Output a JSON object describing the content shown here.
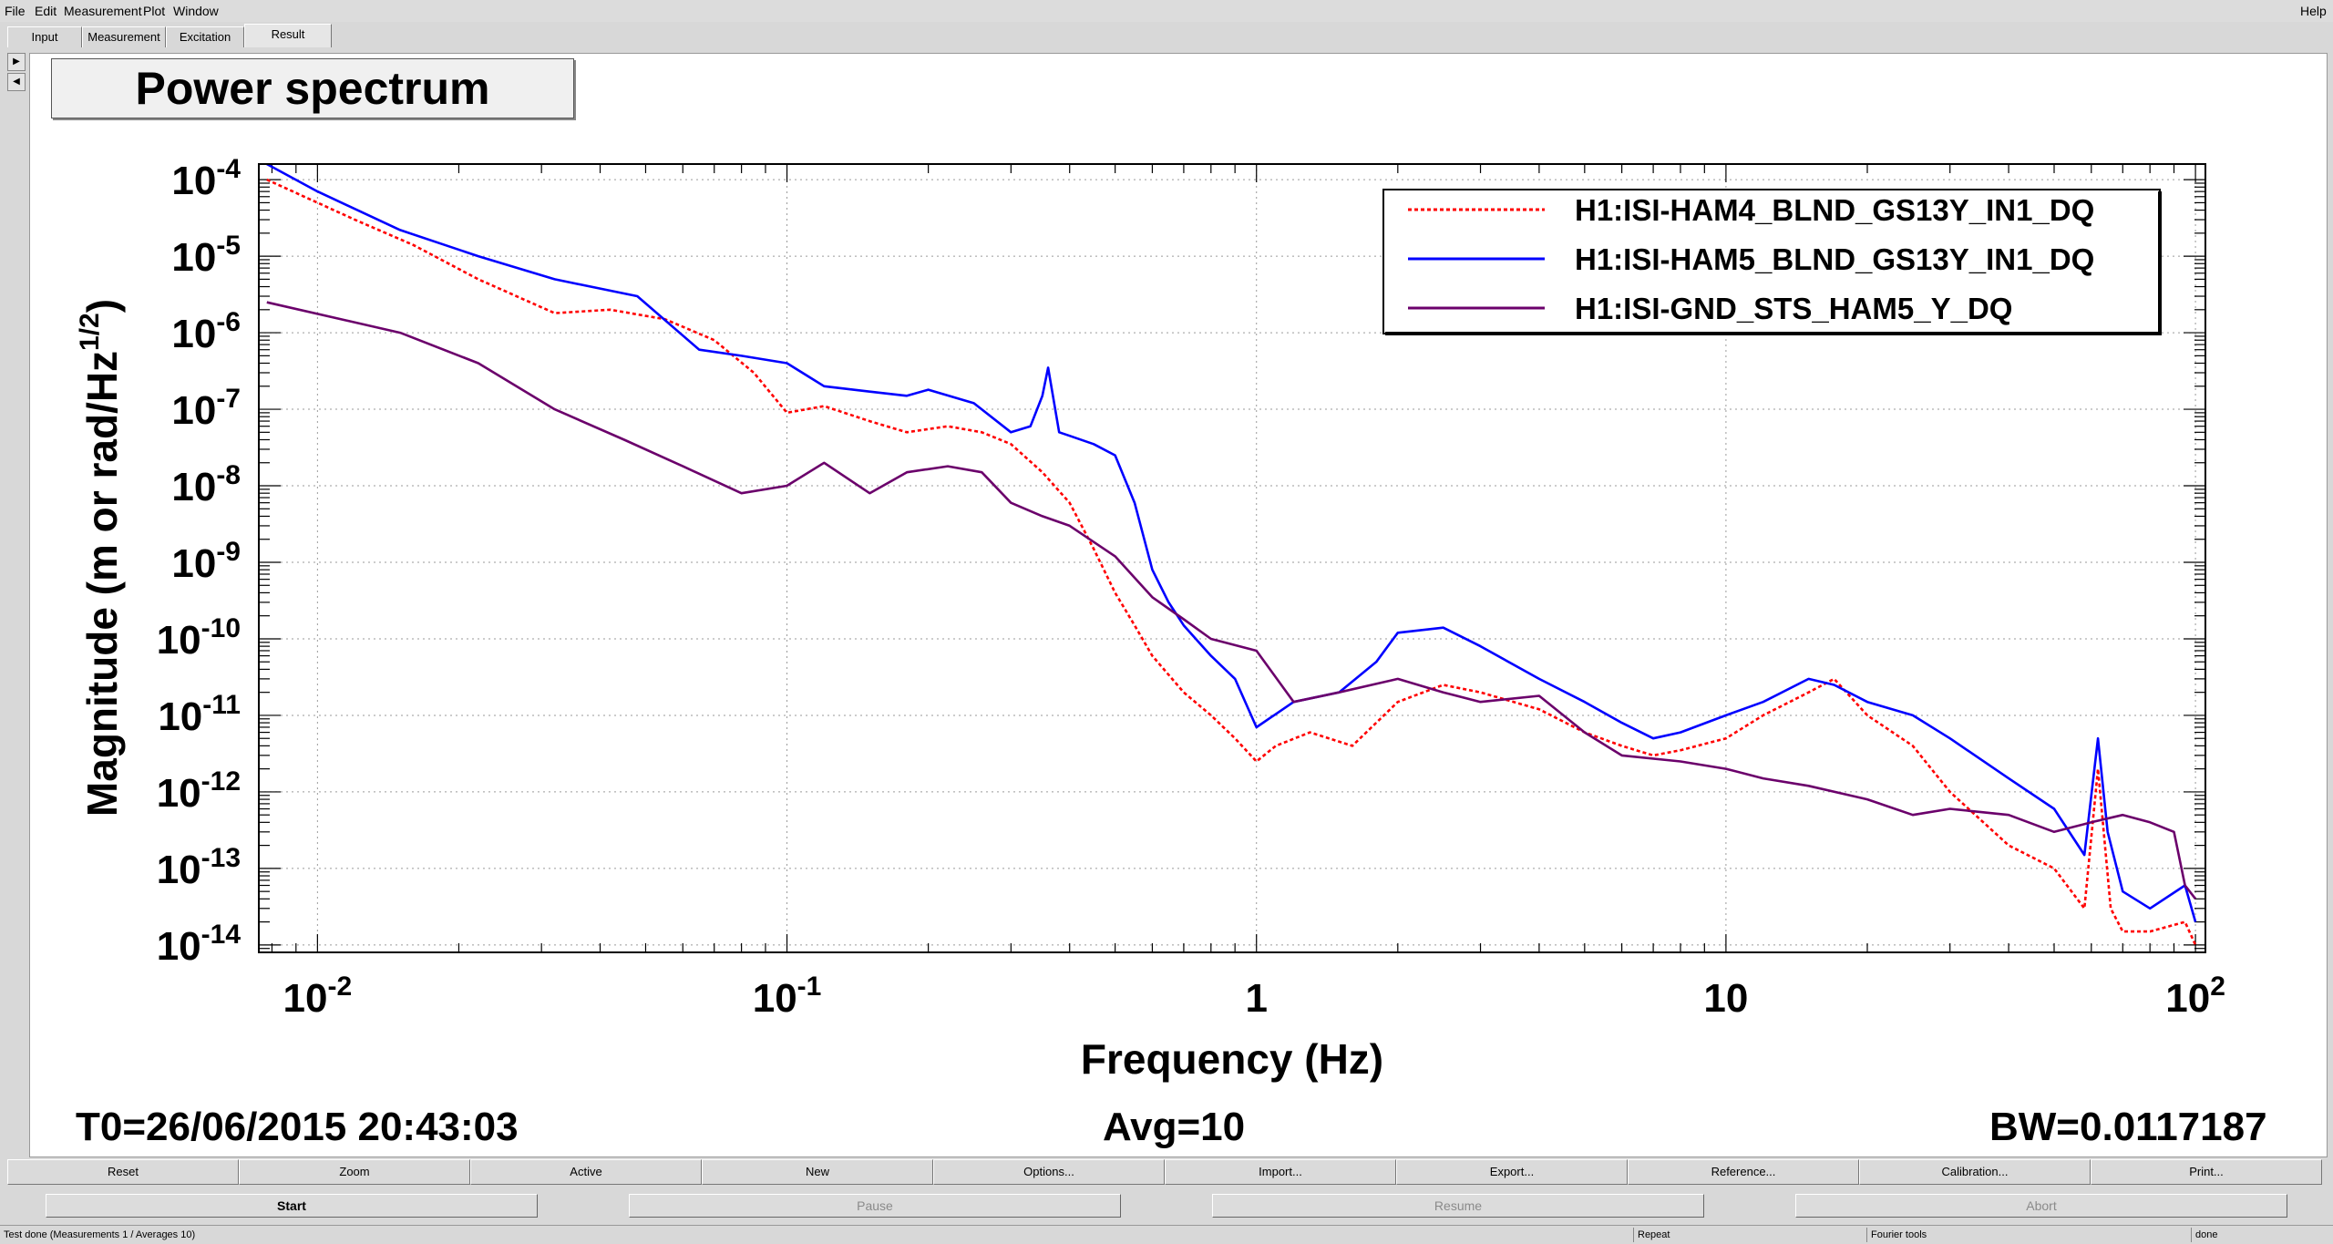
{
  "menu": {
    "items": [
      {
        "label": "File"
      },
      {
        "label": "Edit"
      },
      {
        "label": "Measurement"
      },
      {
        "label": "Plot"
      },
      {
        "label": "Window"
      }
    ],
    "help_label": "Help"
  },
  "tabs": [
    {
      "label": "Input"
    },
    {
      "label": "Measurement"
    },
    {
      "label": "Excitation"
    },
    {
      "label": "Result"
    }
  ],
  "plot": {
    "title": "Power spectrum",
    "t0": "T0=26/06/2015 20:43:03",
    "avg": "Avg=10",
    "bw": "BW=0.0117187"
  },
  "chart_data": {
    "type": "line",
    "xlabel": "Frequency (Hz)",
    "ylabel": "Magnitude (m or rad/Hz",
    "ylabel_exp": "1/2",
    "x_scale": "log",
    "y_scale": "log",
    "xlim": [
      0.0075,
      105
    ],
    "ylim": [
      8e-15,
      0.00016
    ],
    "grid": true,
    "legend_position": "top-right",
    "x_ticks": [
      {
        "value": 0.01,
        "base": "10",
        "exp": "-2"
      },
      {
        "value": 0.1,
        "base": "10",
        "exp": "-1"
      },
      {
        "value": 1,
        "base": "1",
        "exp": ""
      },
      {
        "value": 10,
        "base": "10",
        "exp": ""
      },
      {
        "value": 100,
        "base": "10",
        "exp": "2"
      }
    ],
    "y_ticks": [
      {
        "value": 0.0001,
        "base": "10",
        "exp": "-4"
      },
      {
        "value": 1e-05,
        "base": "10",
        "exp": "-5"
      },
      {
        "value": 1e-06,
        "base": "10",
        "exp": "-6"
      },
      {
        "value": 1e-07,
        "base": "10",
        "exp": "-7"
      },
      {
        "value": 1e-08,
        "base": "10",
        "exp": "-8"
      },
      {
        "value": 1e-09,
        "base": "10",
        "exp": "-9"
      },
      {
        "value": 1e-10,
        "base": "10",
        "exp": "-10"
      },
      {
        "value": 1e-11,
        "base": "10",
        "exp": "-11"
      },
      {
        "value": 1e-12,
        "base": "10",
        "exp": "-12"
      },
      {
        "value": 1e-13,
        "base": "10",
        "exp": "-13"
      },
      {
        "value": 1e-14,
        "base": "10",
        "exp": "-14"
      }
    ],
    "series": [
      {
        "name": "H1:ISI-HAM4_BLND_GS13Y_IN1_DQ",
        "color": "#ff0000",
        "dashed": true,
        "x": [
          0.0078,
          0.012,
          0.016,
          0.022,
          0.032,
          0.042,
          0.055,
          0.07,
          0.085,
          0.1,
          0.12,
          0.15,
          0.18,
          0.22,
          0.26,
          0.3,
          0.35,
          0.4,
          0.45,
          0.5,
          0.55,
          0.6,
          0.7,
          0.8,
          0.9,
          1.0,
          1.1,
          1.3,
          1.6,
          2.0,
          2.5,
          3.0,
          4.0,
          5.0,
          6.0,
          7.0,
          8.0,
          10.0,
          12.0,
          15.0,
          17.0,
          20.0,
          25.0,
          30.0,
          40.0,
          50.0,
          58.0,
          62.0,
          66.0,
          70.0,
          80.0,
          95.0,
          100.0
        ],
        "y": [
          0.0001,
          3e-05,
          1.4e-05,
          5e-06,
          1.8e-06,
          2e-06,
          1.5e-06,
          8e-07,
          3e-07,
          9e-08,
          1.1e-07,
          7e-08,
          5e-08,
          6e-08,
          5e-08,
          3.5e-08,
          1.5e-08,
          6e-09,
          1.5e-09,
          4e-10,
          1.5e-10,
          6e-11,
          2e-11,
          1e-11,
          5e-12,
          2.5e-12,
          4e-12,
          6e-12,
          4e-12,
          1.5e-11,
          2.5e-11,
          2e-11,
          1.2e-11,
          6e-12,
          4e-12,
          3e-12,
          3.5e-12,
          5e-12,
          1e-11,
          2e-11,
          3e-11,
          1e-11,
          4e-12,
          1e-12,
          2e-13,
          1e-13,
          3e-14,
          2e-12,
          3e-14,
          1.5e-14,
          1.5e-14,
          2e-14,
          1e-14
        ]
      },
      {
        "name": "H1:ISI-HAM5_BLND_GS13Y_IN1_DQ",
        "color": "#0000ff",
        "dashed": false,
        "x": [
          0.0078,
          0.01,
          0.015,
          0.022,
          0.032,
          0.048,
          0.065,
          0.08,
          0.1,
          0.12,
          0.15,
          0.18,
          0.2,
          0.25,
          0.3,
          0.33,
          0.35,
          0.36,
          0.38,
          0.4,
          0.45,
          0.5,
          0.55,
          0.6,
          0.65,
          0.7,
          0.8,
          0.9,
          1.0,
          1.2,
          1.5,
          1.8,
          2.0,
          2.5,
          3.0,
          4.0,
          5.0,
          6.0,
          7.0,
          8.0,
          10.0,
          12.0,
          15.0,
          17.0,
          20.0,
          25.0,
          30.0,
          40.0,
          50.0,
          58.0,
          62.0,
          65.0,
          70.0,
          80.0,
          95.0,
          100.0
        ],
        "y": [
          0.00016,
          7e-05,
          2.2e-05,
          1e-05,
          5e-06,
          3e-06,
          6e-07,
          5e-07,
          4e-07,
          2e-07,
          1.7e-07,
          1.5e-07,
          1.8e-07,
          1.2e-07,
          5e-08,
          6e-08,
          1.5e-07,
          3.5e-07,
          5e-08,
          4.5e-08,
          3.5e-08,
          2.5e-08,
          6e-09,
          8e-10,
          3e-10,
          1.5e-10,
          6e-11,
          3e-11,
          7e-12,
          1.5e-11,
          2e-11,
          5e-11,
          1.2e-10,
          1.4e-10,
          8e-11,
          3e-11,
          1.5e-11,
          8e-12,
          5e-12,
          6e-12,
          1e-11,
          1.5e-11,
          3e-11,
          2.5e-11,
          1.5e-11,
          1e-11,
          5e-12,
          1.5e-12,
          6e-13,
          1.5e-13,
          5e-12,
          3e-13,
          5e-14,
          3e-14,
          6e-14,
          2e-14
        ]
      },
      {
        "name": "H1:ISI-GND_STS_HAM5_Y_DQ",
        "color": "#6b006b",
        "dashed": false,
        "x": [
          0.0078,
          0.015,
          0.022,
          0.032,
          0.045,
          0.06,
          0.08,
          0.1,
          0.12,
          0.15,
          0.18,
          0.22,
          0.26,
          0.3,
          0.35,
          0.4,
          0.5,
          0.6,
          0.7,
          0.8,
          1.0,
          1.2,
          1.5,
          2.0,
          2.5,
          3.0,
          4.0,
          5.0,
          6.0,
          8.0,
          10.0,
          12.0,
          15.0,
          20.0,
          25.0,
          30.0,
          40.0,
          50.0,
          60.0,
          70.0,
          80.0,
          90.0,
          95.0,
          100.0
        ],
        "y": [
          2.5e-06,
          1e-06,
          4e-07,
          1e-07,
          4e-08,
          1.8e-08,
          8e-09,
          1e-08,
          2e-08,
          8e-09,
          1.5e-08,
          1.8e-08,
          1.5e-08,
          6e-09,
          4e-09,
          3e-09,
          1.2e-09,
          3.5e-10,
          1.8e-10,
          1e-10,
          7e-11,
          1.5e-11,
          2e-11,
          3e-11,
          2e-11,
          1.5e-11,
          1.8e-11,
          6e-12,
          3e-12,
          2.5e-12,
          2e-12,
          1.5e-12,
          1.2e-12,
          8e-13,
          5e-13,
          6e-13,
          5e-13,
          3e-13,
          4e-13,
          5e-13,
          4e-13,
          3e-13,
          6e-14,
          4e-14
        ]
      }
    ]
  },
  "buttons_row1": [
    {
      "label": "Reset"
    },
    {
      "label": "Zoom"
    },
    {
      "label": "Active"
    },
    {
      "label": "New"
    },
    {
      "label": "Options..."
    },
    {
      "label": "Import..."
    },
    {
      "label": "Export..."
    },
    {
      "label": "Reference..."
    },
    {
      "label": "Calibration..."
    },
    {
      "label": "Print..."
    }
  ],
  "buttons_row2": [
    {
      "label": "Start"
    },
    {
      "label": "Pause"
    },
    {
      "label": "Resume"
    },
    {
      "label": "Abort"
    }
  ],
  "status": {
    "left": "Test done (Measurements 1 / Averages 10)",
    "repeat": "Repeat",
    "tool": "Fourier tools",
    "state": "done"
  }
}
